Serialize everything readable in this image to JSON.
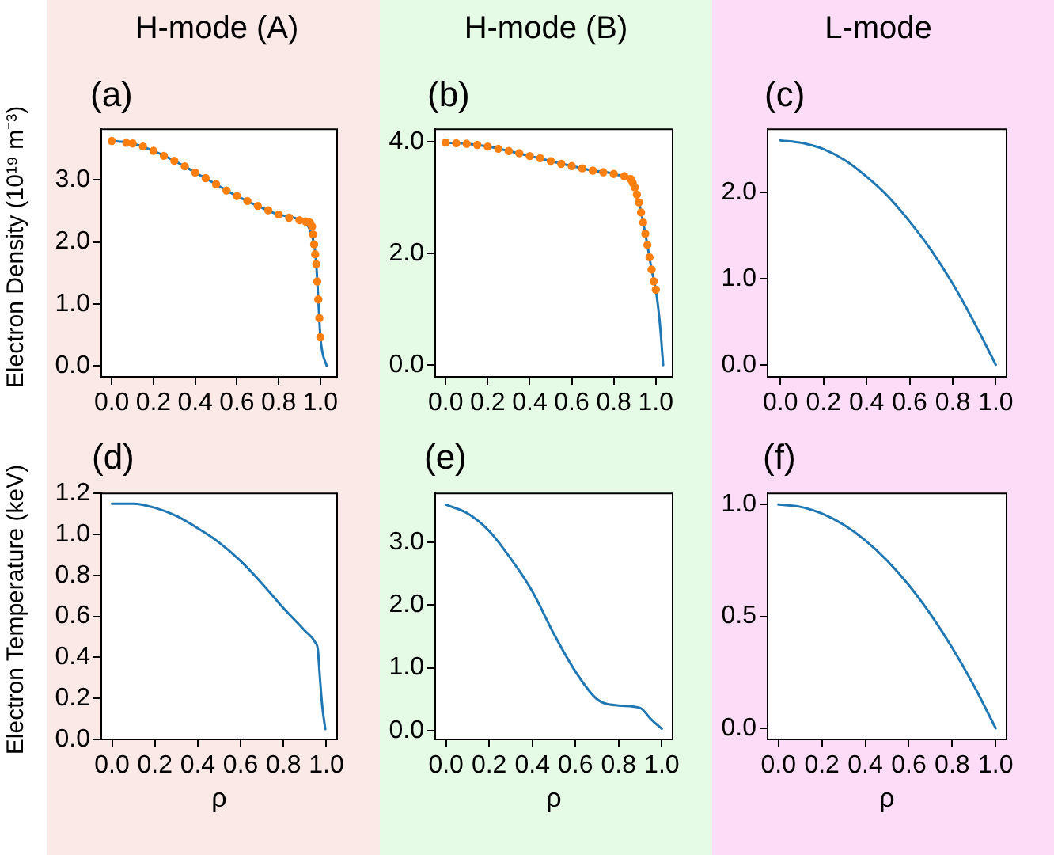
{
  "chart_data": [
    {
      "type": "line",
      "title": "H-mode (A)",
      "annotations": [
        "(a)"
      ],
      "ylabel": "Electron Density (10¹⁹ m⁻³)",
      "grid": false,
      "legend": false,
      "xlim": [
        -0.05,
        1.08
      ],
      "xticks": [
        {
          "value": 0,
          "label": "0.0"
        },
        {
          "value": 0.2,
          "label": "0.2"
        },
        {
          "value": 0.4,
          "label": "0.4"
        },
        {
          "value": 0.6,
          "label": "0.6"
        },
        {
          "value": 0.8,
          "label": "0.8"
        },
        {
          "value": 1,
          "label": "1.0"
        }
      ],
      "ylim": [
        -0.18,
        3.82
      ],
      "yticks": [
        {
          "value": 0,
          "label": "0.0"
        },
        {
          "value": 1,
          "label": "1.0"
        },
        {
          "value": 2,
          "label": "2.0"
        },
        {
          "value": 3,
          "label": "3.0"
        }
      ],
      "series": [
        {
          "type": "line",
          "color": "#1f77b4",
          "marker": "none",
          "x": [
            0,
            0.1,
            0.2,
            0.3,
            0.4,
            0.5,
            0.6,
            0.7,
            0.8,
            0.9,
            0.97,
            0.98,
            0.99,
            1.0,
            1.01,
            1.03
          ],
          "values": [
            3.63,
            3.59,
            3.47,
            3.31,
            3.12,
            2.93,
            2.74,
            2.58,
            2.44,
            2.35,
            1.96,
            1.64,
            1.07,
            0.46,
            0.21,
            0.0
          ]
        },
        {
          "type": "scatter",
          "color": "#ff7f0e",
          "marker": "circle",
          "x": [
            0,
            0.07,
            0.1,
            0.15,
            0.2,
            0.25,
            0.3,
            0.35,
            0.4,
            0.45,
            0.5,
            0.55,
            0.6,
            0.65,
            0.7,
            0.75,
            0.8,
            0.85,
            0.9,
            0.93,
            0.95,
            0.96,
            0.965,
            0.97,
            0.975,
            0.98,
            0.985,
            0.99,
            0.995,
            1.0
          ],
          "values": [
            3.63,
            3.6,
            3.59,
            3.54,
            3.47,
            3.39,
            3.31,
            3.22,
            3.12,
            3.03,
            2.93,
            2.83,
            2.74,
            2.66,
            2.58,
            2.51,
            2.44,
            2.39,
            2.35,
            2.33,
            2.31,
            2.25,
            2.12,
            1.96,
            1.8,
            1.64,
            1.36,
            1.07,
            0.77,
            0.46
          ]
        }
      ]
    },
    {
      "type": "line",
      "title": "H-mode (B)",
      "annotations": [
        "(b)"
      ],
      "grid": false,
      "legend": false,
      "xlim": [
        -0.05,
        1.08
      ],
      "xticks": [
        {
          "value": 0,
          "label": "0.0"
        },
        {
          "value": 0.2,
          "label": "0.2"
        },
        {
          "value": 0.4,
          "label": "0.4"
        },
        {
          "value": 0.6,
          "label": "0.6"
        },
        {
          "value": 0.8,
          "label": "0.8"
        },
        {
          "value": 1,
          "label": "1.0"
        }
      ],
      "ylim": [
        -0.21,
        4.22
      ],
      "yticks": [
        {
          "value": 0,
          "label": "0.0"
        },
        {
          "value": 2,
          "label": "2.0"
        },
        {
          "value": 4,
          "label": "4.0"
        }
      ],
      "series": [
        {
          "type": "line",
          "color": "#1f77b4",
          "marker": "none",
          "x": [
            0,
            0.1,
            0.2,
            0.3,
            0.4,
            0.5,
            0.6,
            0.7,
            0.8,
            0.9,
            0.92,
            0.94,
            0.96,
            0.98,
            1.0,
            1.02,
            1.035
          ],
          "values": [
            3.98,
            3.96,
            3.91,
            3.83,
            3.74,
            3.65,
            3.56,
            3.48,
            3.42,
            3.18,
            2.91,
            2.55,
            2.15,
            1.71,
            1.35,
            0.72,
            0.0
          ]
        },
        {
          "type": "scatter",
          "color": "#ff7f0e",
          "marker": "circle",
          "x": [
            0,
            0.05,
            0.1,
            0.15,
            0.2,
            0.25,
            0.3,
            0.35,
            0.4,
            0.45,
            0.5,
            0.55,
            0.6,
            0.65,
            0.7,
            0.75,
            0.8,
            0.85,
            0.88,
            0.89,
            0.9,
            0.91,
            0.92,
            0.93,
            0.94,
            0.95,
            0.96,
            0.97,
            0.98,
            0.99,
            1.0
          ],
          "values": [
            3.98,
            3.97,
            3.96,
            3.94,
            3.91,
            3.87,
            3.83,
            3.79,
            3.74,
            3.7,
            3.65,
            3.6,
            3.56,
            3.52,
            3.48,
            3.45,
            3.42,
            3.38,
            3.33,
            3.26,
            3.18,
            3.05,
            2.91,
            2.73,
            2.55,
            2.35,
            2.15,
            1.93,
            1.71,
            1.5,
            1.35
          ]
        }
      ]
    },
    {
      "type": "line",
      "title": "L-mode",
      "annotations": [
        "(c)"
      ],
      "grid": false,
      "legend": false,
      "xlim": [
        -0.06,
        1.05
      ],
      "xticks": [
        {
          "value": 0,
          "label": "0.0"
        },
        {
          "value": 0.2,
          "label": "0.2"
        },
        {
          "value": 0.4,
          "label": "0.4"
        },
        {
          "value": 0.6,
          "label": "0.6"
        },
        {
          "value": 0.8,
          "label": "0.8"
        },
        {
          "value": 1,
          "label": "1.0"
        }
      ],
      "ylim": [
        -0.14,
        2.73
      ],
      "yticks": [
        {
          "value": 0,
          "label": "0.0"
        },
        {
          "value": 1,
          "label": "1.0"
        },
        {
          "value": 2,
          "label": "2.0"
        }
      ],
      "series": [
        {
          "type": "line",
          "color": "#1f77b4",
          "marker": "none",
          "x": [
            0,
            0.1,
            0.2,
            0.3,
            0.4,
            0.5,
            0.6,
            0.7,
            0.8,
            0.9,
            1.0
          ],
          "values": [
            2.6,
            2.57,
            2.5,
            2.37,
            2.18,
            1.95,
            1.66,
            1.33,
            0.94,
            0.49,
            0.0
          ]
        }
      ]
    },
    {
      "type": "line",
      "annotations": [
        "(d)"
      ],
      "ylabel": "Electron Temperature (keV)",
      "xlabel": "ρ",
      "grid": false,
      "legend": false,
      "xlim": [
        -0.05,
        1.05
      ],
      "xticks": [
        {
          "value": 0,
          "label": "0.0"
        },
        {
          "value": 0.2,
          "label": "0.2"
        },
        {
          "value": 0.4,
          "label": "0.4"
        },
        {
          "value": 0.6,
          "label": "0.6"
        },
        {
          "value": 0.8,
          "label": "0.8"
        },
        {
          "value": 1,
          "label": "1.0"
        }
      ],
      "ylim": [
        0,
        1.2
      ],
      "yticks": [
        {
          "value": 0,
          "label": "0.0"
        },
        {
          "value": 0.2,
          "label": "0.2"
        },
        {
          "value": 0.4,
          "label": "0.4"
        },
        {
          "value": 0.6,
          "label": "0.6"
        },
        {
          "value": 0.8,
          "label": "0.8"
        },
        {
          "value": 1,
          "label": "1.0"
        },
        {
          "value": 1.2,
          "label": "1.2"
        }
      ],
      "series": [
        {
          "type": "line",
          "color": "#1f77b4",
          "marker": "none",
          "x": [
            0,
            0.1,
            0.2,
            0.3,
            0.4,
            0.5,
            0.6,
            0.7,
            0.8,
            0.9,
            0.95,
            0.96,
            0.97,
            0.98,
            0.995
          ],
          "values": [
            1.15,
            1.15,
            1.13,
            1.09,
            1.03,
            0.96,
            0.87,
            0.76,
            0.64,
            0.53,
            0.47,
            0.44,
            0.3,
            0.17,
            0.05
          ]
        }
      ]
    },
    {
      "type": "line",
      "annotations": [
        "(e)"
      ],
      "xlabel": "ρ",
      "grid": false,
      "legend": false,
      "xlim": [
        -0.05,
        1.05
      ],
      "xticks": [
        {
          "value": 0,
          "label": "0.0"
        },
        {
          "value": 0.2,
          "label": "0.2"
        },
        {
          "value": 0.4,
          "label": "0.4"
        },
        {
          "value": 0.6,
          "label": "0.6"
        },
        {
          "value": 0.8,
          "label": "0.8"
        },
        {
          "value": 1,
          "label": "1.0"
        }
      ],
      "ylim": [
        -0.14,
        3.78
      ],
      "yticks": [
        {
          "value": 0,
          "label": "0.0"
        },
        {
          "value": 1,
          "label": "1.0"
        },
        {
          "value": 2,
          "label": "2.0"
        },
        {
          "value": 3,
          "label": "3.0"
        }
      ],
      "series": [
        {
          "type": "line",
          "color": "#1f77b4",
          "marker": "none",
          "x": [
            0,
            0.1,
            0.2,
            0.3,
            0.4,
            0.5,
            0.6,
            0.7,
            0.8,
            0.9,
            0.95,
            1.0
          ],
          "values": [
            3.6,
            3.46,
            3.18,
            2.74,
            2.22,
            1.54,
            0.94,
            0.5,
            0.4,
            0.36,
            0.18,
            0.03
          ]
        }
      ]
    },
    {
      "type": "line",
      "annotations": [
        "(f)"
      ],
      "xlabel": "ρ",
      "grid": false,
      "legend": false,
      "xlim": [
        -0.05,
        1.05
      ],
      "xticks": [
        {
          "value": 0,
          "label": "0.0"
        },
        {
          "value": 0.2,
          "label": "0.2"
        },
        {
          "value": 0.4,
          "label": "0.4"
        },
        {
          "value": 0.6,
          "label": "0.6"
        },
        {
          "value": 0.8,
          "label": "0.8"
        },
        {
          "value": 1,
          "label": "1.0"
        }
      ],
      "ylim": [
        -0.05,
        1.05
      ],
      "yticks": [
        {
          "value": 0,
          "label": "0.0"
        },
        {
          "value": 0.5,
          "label": "0.5"
        },
        {
          "value": 1,
          "label": "1.0"
        }
      ],
      "series": [
        {
          "type": "line",
          "color": "#1f77b4",
          "marker": "none",
          "x": [
            0,
            0.1,
            0.2,
            0.3,
            0.4,
            0.5,
            0.6,
            0.7,
            0.8,
            0.9,
            1.0
          ],
          "values": [
            1.0,
            0.99,
            0.96,
            0.91,
            0.84,
            0.75,
            0.64,
            0.51,
            0.36,
            0.19,
            0.0
          ]
        }
      ]
    }
  ]
}
